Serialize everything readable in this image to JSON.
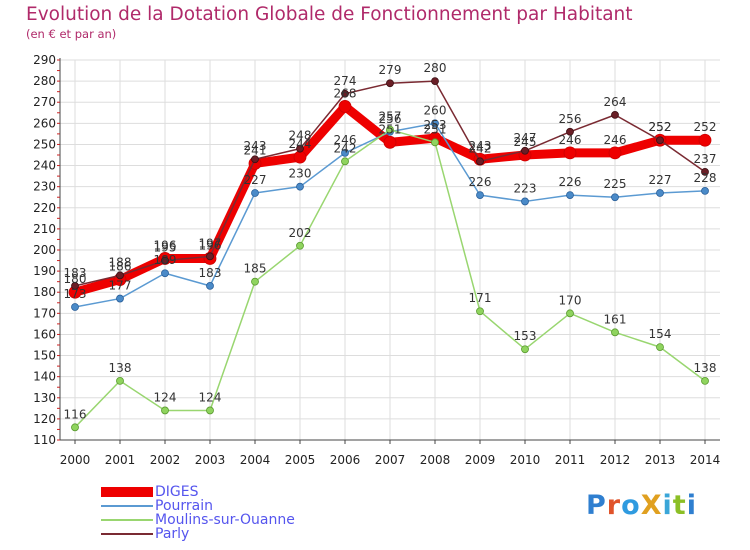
{
  "title": "Evolution de la Dotation Globale de Fonctionnement par Habitant",
  "subtitle": "(en € et par an)",
  "logo": {
    "text": "ProXiti",
    "letters": [
      "P",
      "r",
      "o",
      "X",
      "i",
      "t",
      "i"
    ],
    "colors": [
      "#2f7fd0",
      "#e0532a",
      "#2f9be0",
      "#e0a020",
      "#3aa6d8",
      "#8cbf26",
      "#2f7fd0"
    ]
  },
  "chart_data": {
    "type": "line",
    "title": "Evolution de la Dotation Globale de Fonctionnement par Habitant",
    "subtitle": "(en € et par an)",
    "x": [
      "2000",
      "2001",
      "2002",
      "2003",
      "2004",
      "2005",
      "2006",
      "2007",
      "2008",
      "2009",
      "2010",
      "2011",
      "2012",
      "2013",
      "2014"
    ],
    "yticks": [
      "290",
      "280",
      "270",
      "260",
      "250",
      "240",
      "230",
      "220",
      "210",
      "200",
      "190",
      "180",
      "170",
      "160",
      "150",
      "140",
      "130",
      "120",
      "110"
    ],
    "ylim": [
      110,
      290
    ],
    "grid": true,
    "legend_position": "bottom-left",
    "series": [
      {
        "name": "DIGES",
        "color": "#ee0000",
        "values": [
          180,
          186,
          196,
          196,
          241,
          244,
          268,
          251,
          253,
          243,
          245,
          246,
          246,
          252,
          252
        ],
        "labels": [
          "180",
          "186",
          "196",
          "196",
          "241",
          "244",
          "268",
          "251",
          "253",
          "243",
          "245",
          "246",
          "246",
          "252",
          "252"
        ]
      },
      {
        "name": "Pourrain",
        "color": "#5b9ad2",
        "values": [
          173,
          177,
          189,
          183,
          227,
          230,
          246,
          256,
          260,
          226,
          223,
          226,
          225,
          227,
          228
        ],
        "labels": [
          "173",
          "177",
          "189",
          "183",
          "227",
          "230",
          "246",
          "256",
          "260",
          "226",
          "223",
          "226",
          "225",
          "227",
          "228"
        ]
      },
      {
        "name": "Moulins-sur-Ouanne",
        "color": "#99d670",
        "values": [
          116,
          138,
          124,
          124,
          185,
          202,
          242,
          257,
          251,
          171,
          153,
          170,
          161,
          154,
          138
        ],
        "labels": [
          "116",
          "138",
          "124",
          "124",
          "185",
          "202",
          "242",
          "257",
          "251",
          "171",
          "153",
          "170",
          "161",
          "154",
          "138"
        ]
      },
      {
        "name": "Parly",
        "color": "#7a2a32",
        "values": [
          183,
          188,
          195,
          197,
          243,
          248,
          274,
          279,
          280,
          242,
          247,
          256,
          264,
          252,
          237
        ],
        "labels": [
          "183",
          "188",
          "195",
          "197",
          "243",
          "248",
          "274",
          "279",
          "280",
          "242",
          "247",
          "256",
          "264",
          "252",
          "237"
        ]
      }
    ]
  }
}
